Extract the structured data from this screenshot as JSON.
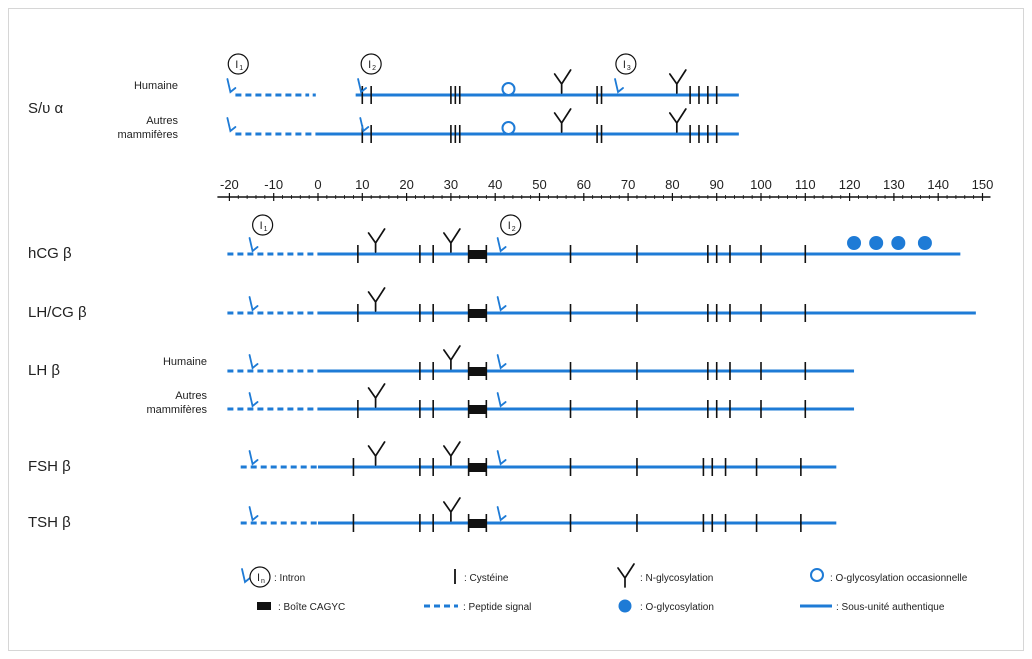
{
  "colors": {
    "blue": "#1e7bd6",
    "black": "#111111",
    "text": "#222222"
  },
  "axis": {
    "min": -20,
    "max": 150,
    "ticks": [
      "-20",
      "-10",
      "0",
      "10",
      "20",
      "30",
      "40",
      "50",
      "60",
      "70",
      "80",
      "90",
      "100",
      "110",
      "120",
      "130",
      "140",
      "150"
    ]
  },
  "alpha": {
    "label": "S/υ α",
    "rows": [
      {
        "species": [
          "Humaine"
        ],
        "signal": [
          -20,
          -0.5
        ],
        "line": [
          8.5,
          95
        ],
        "signal_gap": true,
        "cysteines": [
          10,
          12,
          30,
          31,
          32,
          63,
          64,
          84,
          86,
          88,
          90
        ],
        "nglyc": [
          55,
          81
        ],
        "oglyc_occ": [
          43
        ],
        "introns": [
          -20,
          9.5,
          67.5
        ]
      },
      {
        "species": [
          "Autres",
          "mammifères"
        ],
        "signal": [
          -20,
          0
        ],
        "line": [
          0,
          95
        ],
        "cysteines": [
          10,
          12,
          30,
          31,
          32,
          63,
          64,
          84,
          86,
          88,
          90
        ],
        "nglyc": [
          55,
          81
        ],
        "oglyc_occ": [
          43
        ],
        "introns": [
          -20,
          10
        ]
      }
    ],
    "intron_markers": [
      {
        "label": "I1",
        "x": -18
      },
      {
        "label": "I2",
        "x": 12
      },
      {
        "label": "I3",
        "x": 69.5
      }
    ]
  },
  "beta": [
    {
      "label": "hCG β",
      "signal": [
        -20,
        0
      ],
      "line": [
        0,
        145
      ],
      "cysteines": [
        9,
        23,
        26,
        34,
        38,
        57,
        72,
        88,
        90,
        93,
        100,
        110
      ],
      "nglyc": [
        13,
        30
      ],
      "cagyc": [
        34,
        38
      ],
      "introns": [
        -15,
        41
      ],
      "oglyc": [
        121,
        126,
        131,
        137
      ],
      "intron_markers": [
        {
          "label": "I1",
          "x": -12.5
        },
        {
          "label": "I2",
          "x": 43.5
        }
      ]
    },
    {
      "label": "LH/CG β",
      "signal": [
        -20,
        0
      ],
      "line": [
        0,
        148.5
      ],
      "cysteines": [
        9,
        23,
        26,
        34,
        38,
        57,
        72,
        88,
        90,
        93,
        100,
        110
      ],
      "nglyc": [
        13
      ],
      "cagyc": [
        34,
        38
      ],
      "introns": [
        -15,
        41
      ]
    },
    {
      "label": "LH β",
      "species": [
        "Humaine"
      ],
      "signal": [
        -20,
        0
      ],
      "line": [
        0,
        121
      ],
      "cysteines": [
        23,
        26,
        34,
        38,
        57,
        72,
        88,
        90,
        93,
        100,
        110
      ],
      "nglyc": [
        30
      ],
      "cagyc": [
        34,
        38
      ],
      "introns": [
        -15,
        41
      ]
    },
    {
      "species": [
        "Autres",
        "mammifères"
      ],
      "signal": [
        -20,
        0
      ],
      "line": [
        0,
        121
      ],
      "cysteines": [
        9,
        23,
        26,
        34,
        38,
        57,
        72,
        88,
        90,
        93,
        100,
        110
      ],
      "nglyc": [
        13
      ],
      "cagyc": [
        34,
        38
      ],
      "introns": [
        -15,
        41
      ]
    },
    {
      "label": "FSH β",
      "signal": [
        -17,
        0
      ],
      "line": [
        0,
        117
      ],
      "cysteines": [
        8,
        23,
        26,
        34,
        38,
        57,
        72,
        87,
        89,
        92,
        99,
        109
      ],
      "nglyc": [
        13,
        30
      ],
      "cagyc": [
        34,
        38
      ],
      "introns": [
        -15,
        41
      ]
    },
    {
      "label": "TSH β",
      "signal": [
        -17,
        0
      ],
      "line": [
        0,
        117
      ],
      "cysteines": [
        8,
        23,
        26,
        34,
        38,
        57,
        72,
        87,
        89,
        92,
        99,
        109
      ],
      "nglyc": [
        30
      ],
      "cagyc": [
        34,
        38
      ],
      "introns": [
        -15,
        41
      ]
    }
  ],
  "legend": {
    "intron": ": Intron",
    "intron_symbol": "In",
    "cysteine": ": Cystéine",
    "nglyc": ": N-glycosylation",
    "oglyc_occ": ": O-glycosylation occasionnelle",
    "cagyc": ": Boîte CAGYC",
    "signal": ": Peptide signal",
    "oglyc": ": O-glycosylation",
    "subunit": ": Sous-unité authentique"
  }
}
